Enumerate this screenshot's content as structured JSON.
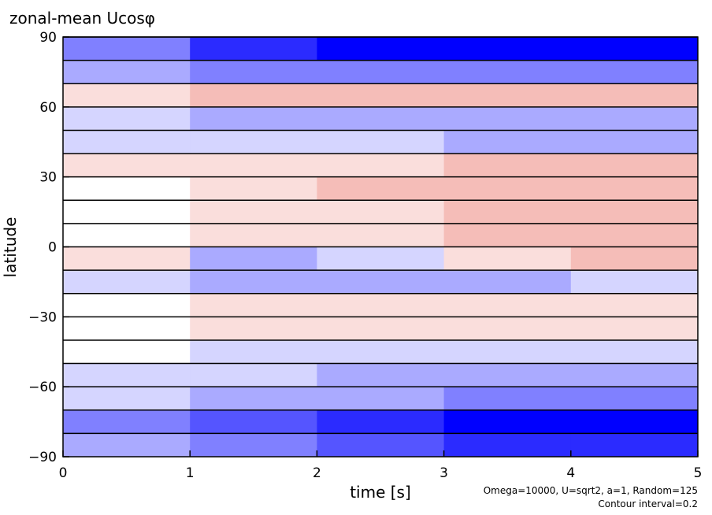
{
  "chart_data": {
    "type": "heatmap",
    "title": "zonal-mean Ucosφ",
    "x_label": "time [s]",
    "y_label": "latitude",
    "annotations": [
      "Omega=10000, U=sqrt2, a=1, Random=125",
      "Contour interval=0.2"
    ],
    "x": [
      0.5,
      1.5,
      2.5,
      3.5,
      4.5
    ],
    "y": [
      -85,
      -75,
      -65,
      -55,
      -45,
      -35,
      -25,
      -15,
      -5,
      5,
      15,
      25,
      35,
      45,
      55,
      65,
      75,
      85
    ],
    "z": [
      [
        -0.4,
        -0.6,
        -0.8,
        -1.0,
        -1.0
      ],
      [
        -0.6,
        -0.8,
        -1.0,
        -1.2,
        -1.2
      ],
      [
        -0.2,
        -0.4,
        -0.4,
        -0.6,
        -0.6
      ],
      [
        -0.2,
        -0.2,
        -0.4,
        -0.4,
        -0.4
      ],
      [
        0.0,
        -0.2,
        -0.2,
        -0.2,
        -0.2
      ],
      [
        0.0,
        0.2,
        0.2,
        0.2,
        0.2
      ],
      [
        0.0,
        0.2,
        0.2,
        0.2,
        0.2
      ],
      [
        -0.2,
        -0.4,
        -0.4,
        -0.4,
        -0.2
      ],
      [
        0.2,
        -0.4,
        -0.2,
        0.2,
        0.4
      ],
      [
        0.0,
        0.2,
        0.2,
        0.4,
        0.4
      ],
      [
        0.0,
        0.2,
        0.2,
        0.4,
        0.4
      ],
      [
        0.0,
        0.2,
        0.4,
        0.4,
        0.4
      ],
      [
        0.2,
        0.2,
        0.2,
        0.4,
        0.4
      ],
      [
        -0.2,
        -0.2,
        -0.2,
        -0.4,
        -0.4
      ],
      [
        -0.2,
        -0.4,
        -0.4,
        -0.4,
        -0.4
      ],
      [
        0.2,
        0.4,
        0.4,
        0.4,
        0.4
      ],
      [
        -0.4,
        -0.6,
        -0.6,
        -0.6,
        -0.6
      ],
      [
        -0.6,
        -1.0,
        -1.2,
        -1.2,
        -1.2
      ]
    ],
    "xlim": [
      0,
      5
    ],
    "ylim": [
      -90,
      90
    ],
    "xticks": [
      0,
      1,
      2,
      3,
      4,
      5
    ],
    "yticks": [
      {
        "value": -90,
        "label": "−90"
      },
      {
        "value": -60,
        "label": "−60"
      },
      {
        "value": -30,
        "label": "−30"
      },
      0,
      30,
      60,
      90
    ],
    "zlim": [
      -1.2,
      1.2
    ],
    "negative_color": "#0000ff",
    "positive_color": "#e03a2a"
  }
}
